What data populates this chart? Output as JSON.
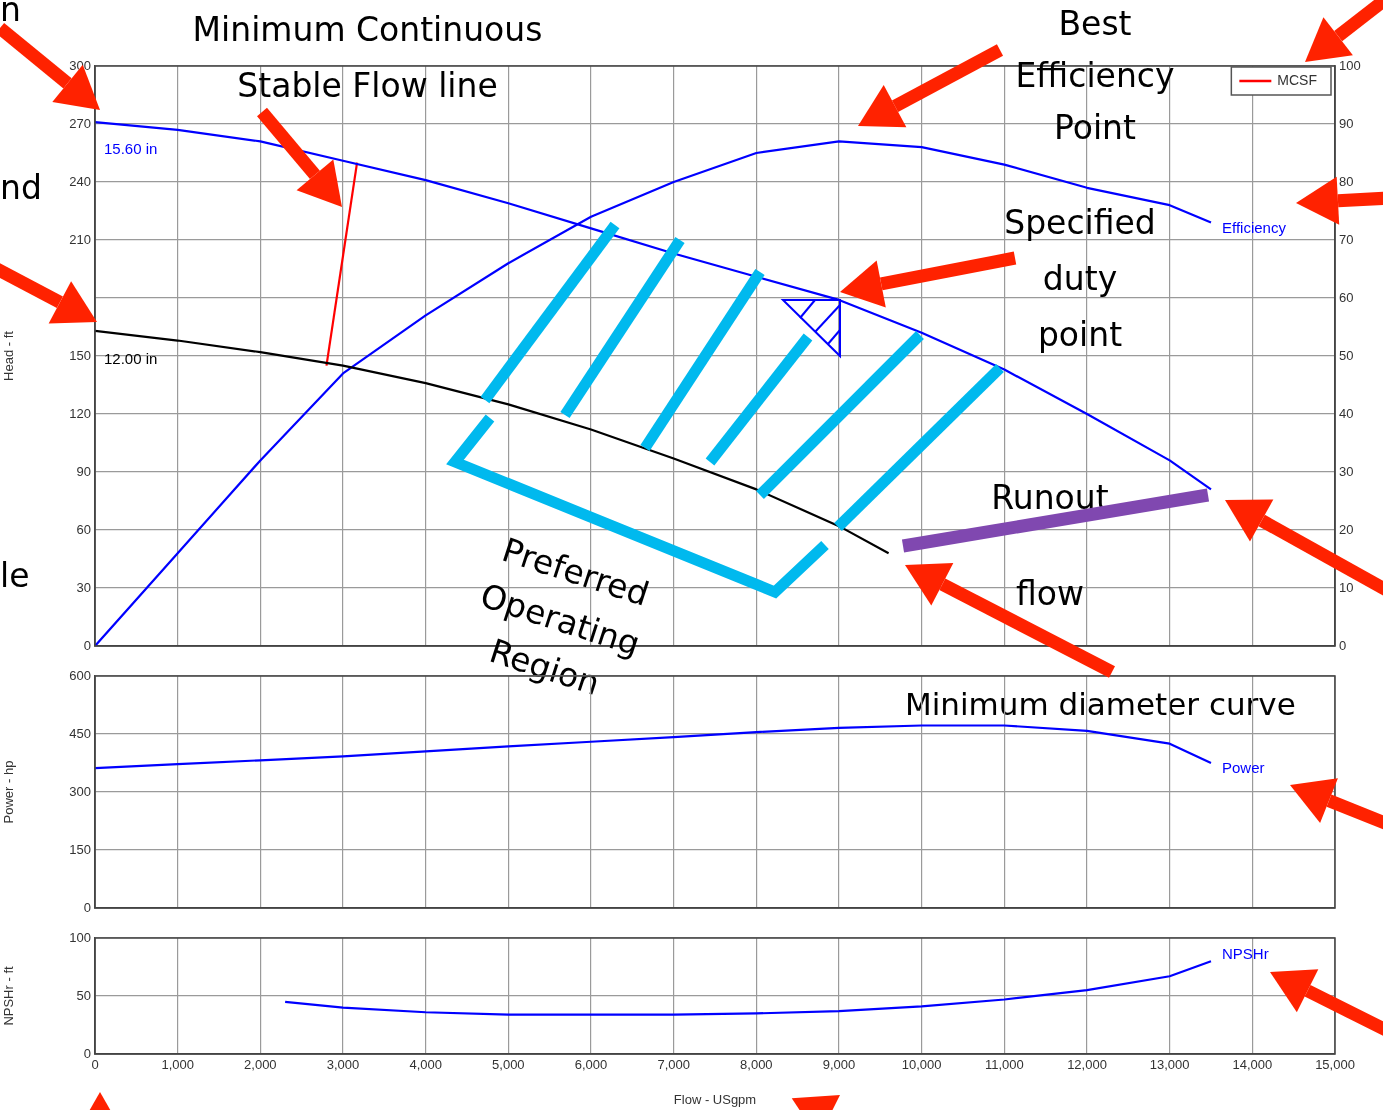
{
  "chart_data": [
    {
      "type": "line",
      "ylabel": "Head - ft",
      "xlim": [
        0,
        15000
      ],
      "xticks": [
        0,
        1000,
        2000,
        3000,
        4000,
        5000,
        6000,
        7000,
        8000,
        9000,
        10000,
        11000,
        12000,
        13000,
        14000,
        15000
      ],
      "ylim": [
        0,
        300
      ],
      "yticks": [
        0,
        30,
        60,
        90,
        120,
        150,
        {
          "value": 180,
          "label": null
        },
        210,
        240,
        270,
        300
      ],
      "y2lim": [
        0,
        100
      ],
      "y2ticks": [
        0,
        10,
        20,
        30,
        40,
        50,
        60,
        70,
        80,
        90,
        100
      ],
      "tick_labels": "y",
      "grid": true,
      "legend": "top right",
      "series": [
        {
          "color": "#0000ff",
          "x": [
            0,
            1000,
            2000,
            3000,
            4000,
            5000,
            6000,
            7000,
            8000,
            9000,
            10000,
            11000,
            12000,
            13000,
            13500
          ],
          "values": [
            271,
            267,
            261,
            251,
            241,
            229,
            216,
            203,
            191,
            179,
            162,
            143,
            120,
            96,
            81
          ]
        },
        {
          "color": "#000000",
          "x": [
            0,
            1000,
            2000,
            3000,
            4000,
            5000,
            6000,
            7000,
            8000,
            9000,
            9600
          ],
          "values": [
            163,
            158,
            152,
            145,
            136,
            125,
            112,
            97,
            81,
            62,
            48
          ]
        },
        {
          "color": "#0000ff",
          "axis": "y2",
          "x": [
            0,
            1000,
            2000,
            3000,
            4000,
            5000,
            6000,
            7000,
            8000,
            9000,
            10000,
            11000,
            12000,
            13000,
            13500
          ],
          "values": [
            0,
            16,
            32,
            47,
            57,
            66,
            74,
            80,
            85,
            87,
            86,
            83,
            79,
            76,
            73
          ]
        },
        {
          "name": "MCSF",
          "color": "#ff0000",
          "x": [
            2800,
            3170
          ],
          "values": [
            145,
            250
          ]
        }
      ],
      "annotations": [
        "15.60 in",
        "12.00 in",
        "Efficiency",
        "Minimum Continuous\nStable Flow line",
        "Best\nEfficiency\nPoint",
        "Specified\nduty\npoint",
        "Runout\nflow",
        "Preferred\nOperating\nRegion",
        "Minimum diameter curve",
        "n",
        "nd",
        "le"
      ]
    },
    {
      "type": "line",
      "ylabel": "Power - hp",
      "xlim": [
        0,
        15000
      ],
      "xticks": [
        0,
        1000,
        2000,
        3000,
        4000,
        5000,
        6000,
        7000,
        8000,
        9000,
        10000,
        11000,
        12000,
        13000,
        14000,
        15000
      ],
      "ylim": [
        0,
        600
      ],
      "yticks": [
        0,
        150,
        300,
        450,
        600
      ],
      "tick_labels": "y",
      "grid": true,
      "series": [
        {
          "color": "#0000ff",
          "x": [
            0,
            1000,
            2000,
            3000,
            4000,
            5000,
            6000,
            7000,
            8000,
            9000,
            10000,
            11000,
            12000,
            13000,
            13500
          ],
          "values": [
            362,
            372,
            382,
            392,
            405,
            418,
            430,
            442,
            455,
            466,
            472,
            472,
            458,
            425,
            375
          ]
        }
      ],
      "annotations": [
        "Power"
      ]
    },
    {
      "type": "line",
      "ylabel": "NPSHr - ft",
      "xlabel": "Flow - USgpm",
      "xlim": [
        0,
        15000
      ],
      "xticks": [
        0,
        {
          "value": 1000,
          "label": "1,000"
        },
        {
          "value": 2000,
          "label": "2,000"
        },
        {
          "value": 3000,
          "label": "3,000"
        },
        {
          "value": 4000,
          "label": "4,000"
        },
        {
          "value": 5000,
          "label": "5,000"
        },
        {
          "value": 6000,
          "label": "6,000"
        },
        {
          "value": 7000,
          "label": "7,000"
        },
        {
          "value": 8000,
          "label": "8,000"
        },
        {
          "value": 9000,
          "label": "9,000"
        },
        {
          "value": 10000,
          "label": "10,000"
        },
        {
          "value": 11000,
          "label": "11,000"
        },
        {
          "value": 12000,
          "label": "12,000"
        },
        {
          "value": 13000,
          "label": "13,000"
        },
        {
          "value": 14000,
          "label": "14,000"
        },
        {
          "value": 15000,
          "label": "15,000"
        }
      ],
      "ylim": [
        0,
        100
      ],
      "yticks": [
        0,
        50,
        100
      ],
      "grid": true,
      "series": [
        {
          "color": "#0000ff",
          "x": [
            2300,
            3000,
            4000,
            5000,
            6000,
            7000,
            8000,
            9000,
            10000,
            11000,
            12000,
            13000,
            13500
          ],
          "values": [
            45,
            40,
            36,
            34,
            34,
            34,
            35,
            37,
            41,
            47,
            55,
            67,
            80
          ]
        }
      ],
      "annotations": [
        "NPSHr"
      ]
    }
  ]
}
